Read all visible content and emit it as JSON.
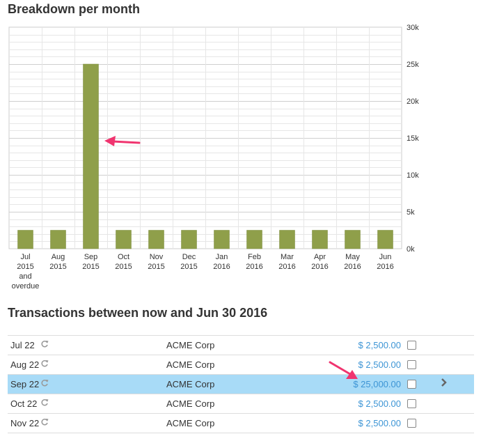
{
  "chart_section": {
    "title": "Breakdown per month"
  },
  "chart_data": {
    "type": "bar",
    "categories": [
      [
        "Jul",
        "2015",
        "and",
        "overdue"
      ],
      [
        "Aug",
        "2015"
      ],
      [
        "Sep",
        "2015"
      ],
      [
        "Oct",
        "2015"
      ],
      [
        "Nov",
        "2015"
      ],
      [
        "Dec",
        "2015"
      ],
      [
        "Jan",
        "2016"
      ],
      [
        "Feb",
        "2016"
      ],
      [
        "Mar",
        "2016"
      ],
      [
        "Apr",
        "2016"
      ],
      [
        "May",
        "2016"
      ],
      [
        "Jun",
        "2016"
      ]
    ],
    "values": [
      2500,
      2500,
      25000,
      2500,
      2500,
      2500,
      2500,
      2500,
      2500,
      2500,
      2500,
      2500
    ],
    "y_ticks": [
      "0k",
      "5k",
      "10k",
      "15k",
      "20k",
      "25k",
      "30k"
    ],
    "ylim": [
      0,
      30000
    ],
    "y_axis_side": "right",
    "grid": true,
    "bar_color": "#8f9f4a",
    "highlight_category_index": 2
  },
  "transactions_section": {
    "title": "Transactions between now and Jun 30 2016",
    "rows": [
      {
        "date": "Jul 22",
        "recurring_icon": "recurring-icon",
        "name": "ACME Corp",
        "amount": "$ 2,500.00",
        "selected": false
      },
      {
        "date": "Aug 22",
        "recurring_icon": "recurring-icon",
        "name": "ACME Corp",
        "amount": "$ 2,500.00",
        "selected": false
      },
      {
        "date": "Sep 22",
        "recurring_icon": "recurring-icon",
        "name": "ACME Corp",
        "amount": "$ 25,000.00",
        "selected": true
      },
      {
        "date": "Oct 22",
        "recurring_icon": "recurring-icon",
        "name": "ACME Corp",
        "amount": "$ 2,500.00",
        "selected": false
      },
      {
        "date": "Nov 22",
        "recurring_icon": "recurring-icon",
        "name": "ACME Corp",
        "amount": "$ 2,500.00",
        "selected": false
      }
    ]
  },
  "colors": {
    "amount": "#3d95d5",
    "selected_row": "#a8dbf7",
    "annotation_arrow": "#f0346f",
    "gridline": "#dddddd"
  }
}
